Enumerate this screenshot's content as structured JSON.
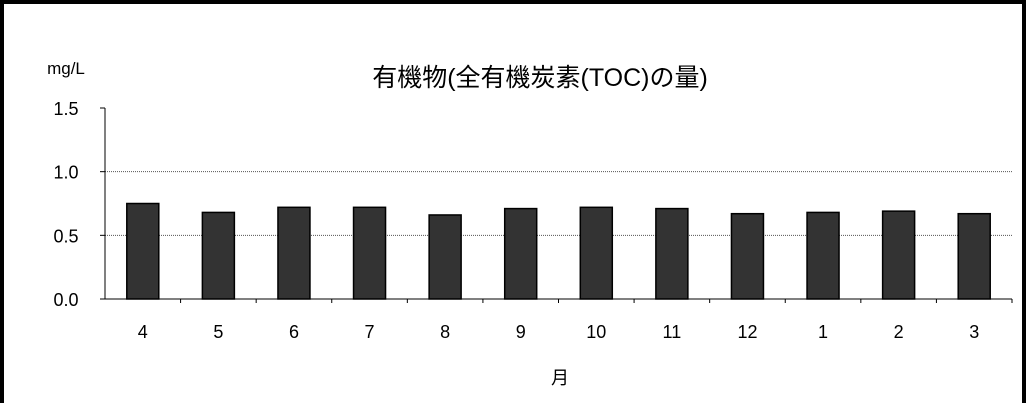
{
  "chart_data": {
    "type": "bar",
    "title": "有機物(全有機炭素(TOC)の量)",
    "unit_label": "mg/L",
    "xlabel": "月",
    "ylabel": "",
    "categories": [
      "4",
      "5",
      "6",
      "7",
      "8",
      "9",
      "10",
      "11",
      "12",
      "1",
      "2",
      "3"
    ],
    "values": [
      0.75,
      0.68,
      0.72,
      0.72,
      0.66,
      0.71,
      0.72,
      0.71,
      0.67,
      0.68,
      0.69,
      0.67
    ],
    "ylim": [
      0,
      1.5
    ],
    "yticks": [
      "0.0",
      "0.5",
      "1.0",
      "1.5"
    ],
    "grid": true,
    "bar_color": "#333333"
  }
}
